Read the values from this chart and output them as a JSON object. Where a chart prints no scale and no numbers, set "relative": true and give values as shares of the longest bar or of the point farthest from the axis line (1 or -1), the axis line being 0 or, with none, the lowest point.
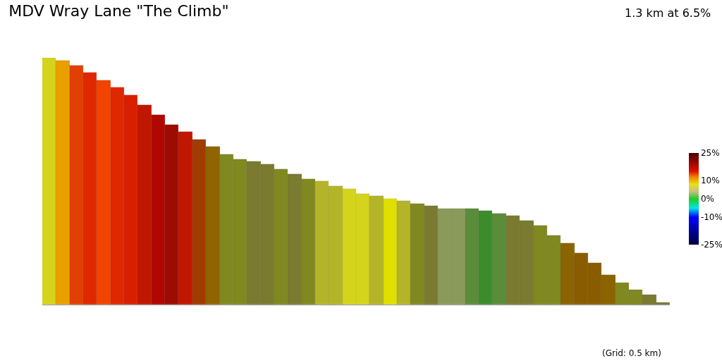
{
  "chart_data": {
    "type": "bar",
    "title": "MDV Wray Lane \"The Climb\"",
    "relative": true,
    "annotations": [
      "1.3 km at 6.5%",
      "(Grid: 0.5 km)"
    ],
    "categories": [
      null,
      null,
      null,
      null,
      null,
      null,
      null,
      null,
      null,
      null,
      null,
      null,
      null,
      null,
      null,
      null,
      null,
      null,
      null,
      null,
      null,
      null,
      null,
      null,
      null,
      null,
      null,
      null,
      null,
      null,
      null,
      null,
      null,
      null,
      null,
      null,
      null,
      null,
      null,
      null,
      null,
      null,
      null,
      null,
      null,
      null
    ],
    "values": [
      1.0,
      0.99,
      0.97,
      0.94,
      0.91,
      0.88,
      0.85,
      0.81,
      0.77,
      0.73,
      0.7,
      0.67,
      0.64,
      0.61,
      0.59,
      0.58,
      0.57,
      0.55,
      0.53,
      0.51,
      0.5,
      0.48,
      0.47,
      0.45,
      0.44,
      0.43,
      0.42,
      0.41,
      0.4,
      0.39,
      0.39,
      0.39,
      0.38,
      0.37,
      0.36,
      0.34,
      0.32,
      0.28,
      0.25,
      0.21,
      0.17,
      0.12,
      0.09,
      0.06,
      0.04,
      0.01
    ],
    "colors": [
      "#d4d41c",
      "#e8a000",
      "#e04000",
      "#e02800",
      "#f04400",
      "#e02800",
      "#d82000",
      "#c01800",
      "#b00800",
      "#9c0c00",
      "#c01800",
      "#a03c00",
      "#906400",
      "#808820",
      "#808820",
      "#7a7a30",
      "#7a7a30",
      "#808820",
      "#7a7a30",
      "#808820",
      "#b4b428",
      "#b4b428",
      "#d4d41c",
      "#d4d41c",
      "#b4b428",
      "#e0e000",
      "#b4b428",
      "#808820",
      "#7a7a30",
      "#8a9a5a",
      "#8a9a5a",
      "#5a8c3a",
      "#3c8c2c",
      "#5a8c3a",
      "#7a7a30",
      "#7a7a30",
      "#808820",
      "#808820",
      "#8a6400",
      "#8a5c00",
      "#8a5c00",
      "#8a6400",
      "#808820",
      "#808820",
      "#7a7a30",
      "#7a7a30"
    ],
    "clim": [
      -25,
      25
    ],
    "cticks": [
      {
        "value": 25,
        "label": "25%"
      },
      {
        "value": 10,
        "label": "10%"
      },
      {
        "value": 0,
        "label": "0%"
      },
      {
        "value": -10,
        "label": "-10%"
      },
      {
        "value": -25,
        "label": "-25%"
      }
    ],
    "legend": false
  }
}
